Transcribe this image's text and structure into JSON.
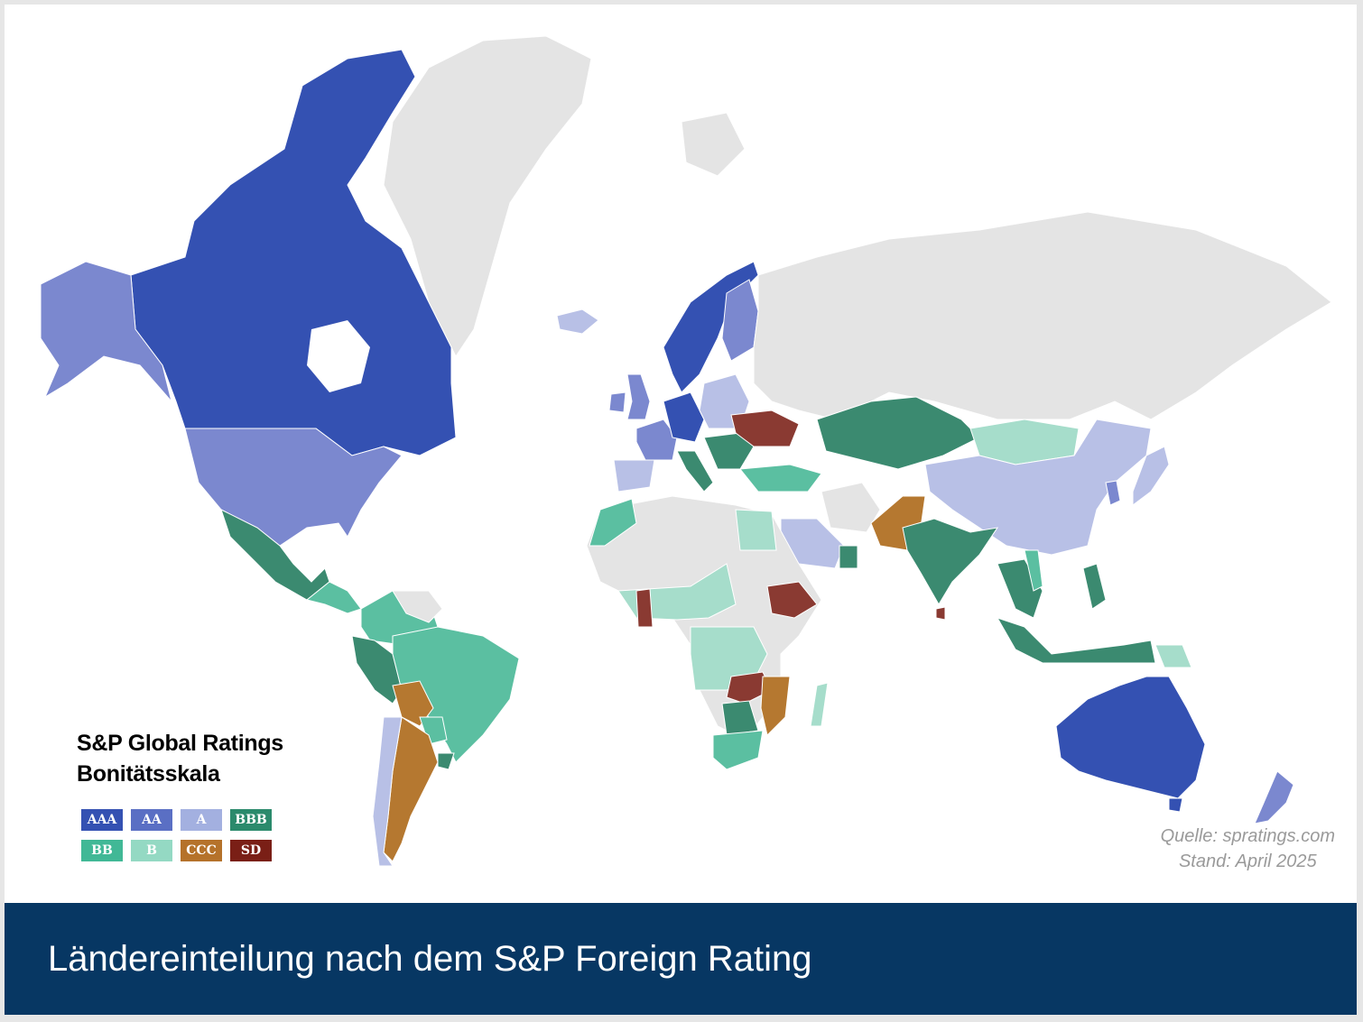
{
  "legend": {
    "title_line1": "S&P Global Ratings",
    "title_line2": "Bonitätsskala",
    "items": [
      {
        "label": "AAA",
        "color": "#3451b2"
      },
      {
        "label": "AA",
        "color": "#5a6fc4"
      },
      {
        "label": "A",
        "color": "#a3b0e0"
      },
      {
        "label": "BBB",
        "color": "#2b8a6c"
      },
      {
        "label": "BB",
        "color": "#41b896"
      },
      {
        "label": "B",
        "color": "#94d9c3"
      },
      {
        "label": "CCC",
        "color": "#b5722a"
      },
      {
        "label": "SD",
        "color": "#7a1f16"
      }
    ]
  },
  "colors": {
    "no_rating": "#e4e4e4",
    "AAA": "#3451b2",
    "AA": "#7b88cf",
    "A": "#b8c0e6",
    "BBB": "#3b8a70",
    "BB": "#5bbfa1",
    "B": "#a6ddcb",
    "CCC": "#b57830",
    "SD": "#8a3a32"
  },
  "map_ratings": [
    {
      "region": "Canada",
      "rating": "AAA"
    },
    {
      "region": "United States",
      "rating": "AA"
    },
    {
      "region": "Alaska",
      "rating": "AA"
    },
    {
      "region": "Greenland",
      "rating": "none"
    },
    {
      "region": "Mexico",
      "rating": "BBB"
    },
    {
      "region": "Central America",
      "rating": "BB"
    },
    {
      "region": "Colombia / Venezuela region",
      "rating": "BB"
    },
    {
      "region": "Peru",
      "rating": "BBB"
    },
    {
      "region": "Brazil",
      "rating": "BB"
    },
    {
      "region": "Bolivia",
      "rating": "CCC"
    },
    {
      "region": "Argentina",
      "rating": "CCC"
    },
    {
      "region": "Chile",
      "rating": "A"
    },
    {
      "region": "Uruguay",
      "rating": "BBB"
    },
    {
      "region": "Paraguay",
      "rating": "BB"
    },
    {
      "region": "Iceland",
      "rating": "A"
    },
    {
      "region": "Norway / Sweden",
      "rating": "AAA"
    },
    {
      "region": "Finland",
      "rating": "AA"
    },
    {
      "region": "United Kingdom",
      "rating": "AA"
    },
    {
      "region": "Ireland",
      "rating": "AA"
    },
    {
      "region": "France",
      "rating": "AA"
    },
    {
      "region": "Germany / Netherlands",
      "rating": "AAA"
    },
    {
      "region": "Spain / Portugal",
      "rating": "A"
    },
    {
      "region": "Italy",
      "rating": "BBB"
    },
    {
      "region": "Poland / Baltics",
      "rating": "A"
    },
    {
      "region": "Southeast Europe",
      "rating": "BBB"
    },
    {
      "region": "Ukraine",
      "rating": "SD"
    },
    {
      "region": "Turkey",
      "rating": "BB"
    },
    {
      "region": "Russia",
      "rating": "none"
    },
    {
      "region": "Kazakhstan",
      "rating": "BBB"
    },
    {
      "region": "Mongolia",
      "rating": "B"
    },
    {
      "region": "China",
      "rating": "A"
    },
    {
      "region": "Japan",
      "rating": "A"
    },
    {
      "region": "Korea",
      "rating": "AA"
    },
    {
      "region": "Pakistan",
      "rating": "CCC"
    },
    {
      "region": "India",
      "rating": "BBB"
    },
    {
      "region": "Sri Lanka",
      "rating": "SD"
    },
    {
      "region": "Saudi Arabia",
      "rating": "A"
    },
    {
      "region": "Oman",
      "rating": "BBB"
    },
    {
      "region": "Egypt",
      "rating": "B"
    },
    {
      "region": "Morocco",
      "rating": "BB"
    },
    {
      "region": "Ethiopia",
      "rating": "SD"
    },
    {
      "region": "Ghana",
      "rating": "SD"
    },
    {
      "region": "Nigeria / West Africa",
      "rating": "B"
    },
    {
      "region": "Angola / Congo",
      "rating": "B"
    },
    {
      "region": "Zambia",
      "rating": "SD"
    },
    {
      "region": "Mozambique",
      "rating": "CCC"
    },
    {
      "region": "Botswana",
      "rating": "BBB"
    },
    {
      "region": "South Africa",
      "rating": "BB"
    },
    {
      "region": "Madagascar",
      "rating": "B"
    },
    {
      "region": "Southeast Asia",
      "rating": "BBB"
    },
    {
      "region": "Vietnam",
      "rating": "BB"
    },
    {
      "region": "Papua New Guinea",
      "rating": "B"
    },
    {
      "region": "Australia",
      "rating": "AAA"
    },
    {
      "region": "New Zealand",
      "rating": "AA"
    }
  ],
  "source": {
    "line1": "Quelle: spratings.com",
    "line2": "Stand: April 2025"
  },
  "footer": {
    "title": "Ländereinteilung nach dem S&P Foreign Rating"
  }
}
